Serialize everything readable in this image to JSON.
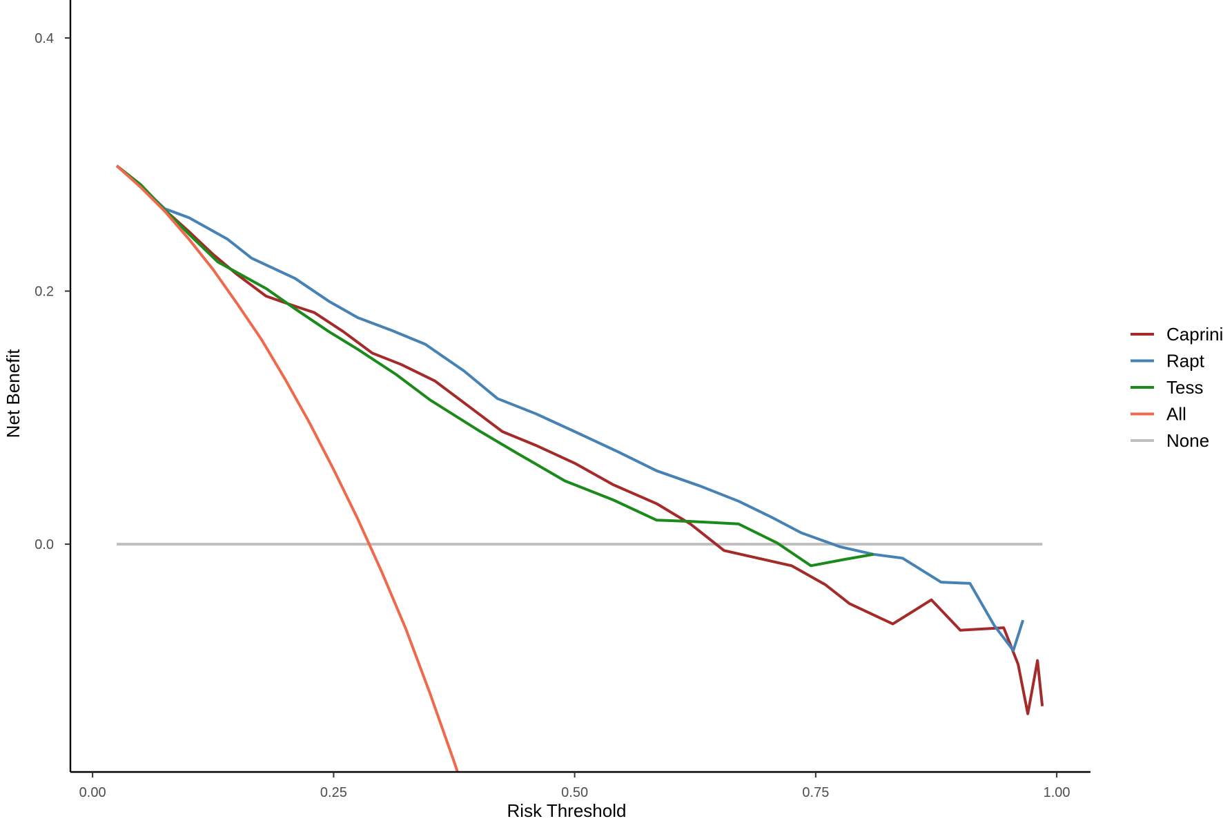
{
  "chart_data": {
    "type": "line",
    "title": "",
    "xlabel": "Risk Threshold",
    "ylabel": "Net Benefit",
    "xlim": [
      -0.023,
      1.035
    ],
    "ylim": [
      -0.18,
      0.43
    ],
    "x_ticks": [
      0.0,
      0.25,
      0.5,
      0.75,
      1.0
    ],
    "x_tick_labels": [
      "0.00",
      "0.25",
      "0.50",
      "0.75",
      "1.00"
    ],
    "y_ticks": [
      0.0,
      0.2,
      0.4
    ],
    "y_tick_labels": [
      "0.0",
      "0.2",
      "0.4"
    ],
    "grid": false,
    "legend_position": "right",
    "series": [
      {
        "name": "Caprini",
        "color": "#a52a2a",
        "x": [
          0.025,
          0.05,
          0.075,
          0.1,
          0.125,
          0.15,
          0.18,
          0.21,
          0.23,
          0.26,
          0.29,
          0.32,
          0.355,
          0.39,
          0.425,
          0.46,
          0.5,
          0.54,
          0.585,
          0.62,
          0.655,
          0.69,
          0.725,
          0.76,
          0.785,
          0.83,
          0.87,
          0.9,
          0.945,
          0.96,
          0.97,
          0.98,
          0.985
        ],
        "y": [
          0.299,
          0.284,
          0.264,
          0.247,
          0.229,
          0.213,
          0.196,
          0.188,
          0.183,
          0.168,
          0.151,
          0.142,
          0.129,
          0.109,
          0.089,
          0.078,
          0.064,
          0.047,
          0.032,
          0.016,
          -0.005,
          -0.011,
          -0.017,
          -0.032,
          -0.047,
          -0.063,
          -0.044,
          -0.068,
          -0.066,
          -0.095,
          -0.134,
          -0.092,
          -0.128
        ]
      },
      {
        "name": "Rapt",
        "color": "#4682b4",
        "x": [
          0.025,
          0.05,
          0.075,
          0.1,
          0.14,
          0.165,
          0.21,
          0.245,
          0.275,
          0.31,
          0.345,
          0.385,
          0.42,
          0.46,
          0.5,
          0.545,
          0.585,
          0.63,
          0.67,
          0.705,
          0.735,
          0.775,
          0.81,
          0.84,
          0.88,
          0.91,
          0.935,
          0.955,
          0.965
        ],
        "y": [
          0.299,
          0.283,
          0.265,
          0.258,
          0.241,
          0.226,
          0.21,
          0.192,
          0.179,
          0.169,
          0.158,
          0.137,
          0.115,
          0.103,
          0.089,
          0.073,
          0.058,
          0.046,
          0.034,
          0.021,
          0.009,
          -0.002,
          -0.008,
          -0.011,
          -0.03,
          -0.031,
          -0.064,
          -0.084,
          -0.06
        ]
      },
      {
        "name": "Tess",
        "color": "#1a8a1a",
        "x": [
          0.025,
          0.05,
          0.075,
          0.1,
          0.13,
          0.18,
          0.21,
          0.245,
          0.275,
          0.315,
          0.35,
          0.4,
          0.44,
          0.49,
          0.54,
          0.585,
          0.62,
          0.67,
          0.71,
          0.745,
          0.78,
          0.81
        ],
        "y": [
          0.299,
          0.284,
          0.264,
          0.245,
          0.223,
          0.202,
          0.186,
          0.168,
          0.154,
          0.134,
          0.114,
          0.09,
          0.072,
          0.05,
          0.035,
          0.019,
          0.018,
          0.016,
          0.001,
          -0.017,
          -0.012,
          -0.008
        ]
      },
      {
        "name": "All",
        "color": "#ef6a4c",
        "x": [
          0.025,
          0.05,
          0.075,
          0.1,
          0.125,
          0.15,
          0.175,
          0.2,
          0.225,
          0.25,
          0.275,
          0.3,
          0.325,
          0.35,
          0.375,
          0.4
        ],
        "y": [
          0.299,
          0.282,
          0.263,
          0.241,
          0.217,
          0.19,
          0.162,
          0.13,
          0.096,
          0.059,
          0.02,
          -0.022,
          -0.067,
          -0.118,
          -0.172,
          -0.229
        ]
      },
      {
        "name": "None",
        "color": "#bebebe",
        "x": [
          0.025,
          0.985
        ],
        "y": [
          0.0,
          0.0
        ]
      }
    ]
  }
}
